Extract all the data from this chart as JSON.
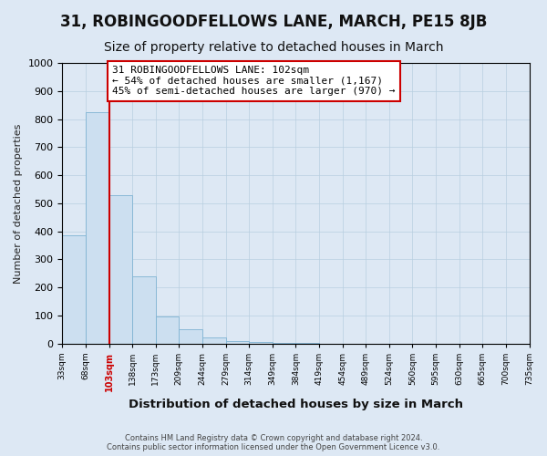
{
  "title": "31, ROBINGOODFELLOWS LANE, MARCH, PE15 8JB",
  "subtitle": "Size of property relative to detached houses in March",
  "xlabel": "Distribution of detached houses by size in March",
  "ylabel": "Number of detached properties",
  "footer_line1": "Contains HM Land Registry data © Crown copyright and database right 2024.",
  "footer_line2": "Contains public sector information licensed under the Open Government Licence v3.0.",
  "bin_labels": [
    "33sqm",
    "68sqm",
    "103sqm",
    "138sqm",
    "173sqm",
    "209sqm",
    "244sqm",
    "279sqm",
    "314sqm",
    "349sqm",
    "384sqm",
    "419sqm",
    "454sqm",
    "489sqm",
    "524sqm",
    "560sqm",
    "595sqm",
    "630sqm",
    "665sqm",
    "700sqm",
    "735sqm"
  ],
  "bar_values": [
    385,
    825,
    530,
    240,
    95,
    50,
    20,
    10,
    5,
    2,
    1,
    0,
    0,
    0,
    0,
    0,
    0,
    0,
    0,
    0
  ],
  "bar_color": "#ccdff0",
  "bar_edge_color": "#7fb3d3",
  "property_line_index": 2,
  "property_line_color": "#cc0000",
  "ylim": [
    0,
    1000
  ],
  "yticks": [
    0,
    100,
    200,
    300,
    400,
    500,
    600,
    700,
    800,
    900,
    1000
  ],
  "annotation_text": "31 ROBINGOODFELLOWS LANE: 102sqm\n← 54% of detached houses are smaller (1,167)\n45% of semi-detached houses are larger (970) →",
  "annotation_box_color": "#ffffff",
  "annotation_box_edge": "#cc0000",
  "bg_color": "#dde8f4",
  "grid_color": "#b8cfe0",
  "title_color": "#111111",
  "title_fontsize": 12,
  "subtitle_fontsize": 10,
  "highlighted_tick": 2
}
